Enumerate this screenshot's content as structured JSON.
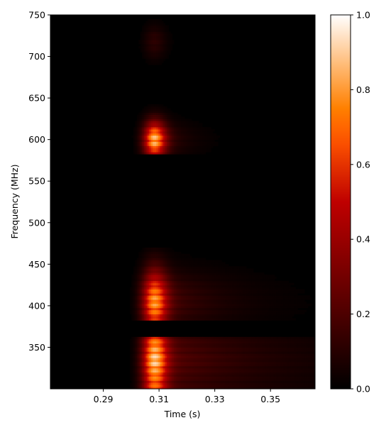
{
  "chart_data": {
    "type": "heatmap",
    "title": "",
    "xlabel": "Time (s)",
    "ylabel": "Frequency (MHz)",
    "xlim": [
      0.271,
      0.366
    ],
    "ylim": [
      300,
      750
    ],
    "x_ticks": [
      0.29,
      0.31,
      0.33,
      0.35
    ],
    "x_tick_labels": [
      "0.29",
      "0.31",
      "0.33",
      "0.35"
    ],
    "y_ticks": [
      350,
      400,
      450,
      500,
      550,
      600,
      650,
      700,
      750
    ],
    "y_tick_labels": [
      "350",
      "400",
      "450",
      "500",
      "550",
      "600",
      "650",
      "700",
      "750"
    ],
    "colormap": "gist_heat",
    "colorbar": {
      "range": [
        0.0,
        1.0
      ],
      "ticks": [
        0.0,
        0.2,
        0.4,
        0.6,
        0.8,
        1.0
      ],
      "tick_labels": [
        "0.0",
        "0.2",
        "0.4",
        "0.6",
        "0.8",
        "1.0"
      ]
    },
    "pulse_peak_time": 0.3085,
    "bands": [
      {
        "f_low": 300,
        "f_high": 362,
        "amplitude": 0.95,
        "time_width": 0.0045,
        "tail": 0.035
      },
      {
        "f_low": 383,
        "f_high": 470,
        "amplitude": 0.85,
        "time_width": 0.0045,
        "tail": 0.02
      },
      {
        "f_low": 582,
        "f_high": 668,
        "amplitude": 0.92,
        "time_width": 0.004,
        "tail": 0.008
      },
      {
        "f_low": 690,
        "f_high": 745,
        "amplitude": 0.12,
        "time_width": 0.004,
        "tail": 0.005
      }
    ],
    "masked_ranges": [
      [
        362,
        383
      ],
      [
        470,
        582
      ],
      [
        668,
        690
      ]
    ],
    "grid": false,
    "legend": "none"
  }
}
